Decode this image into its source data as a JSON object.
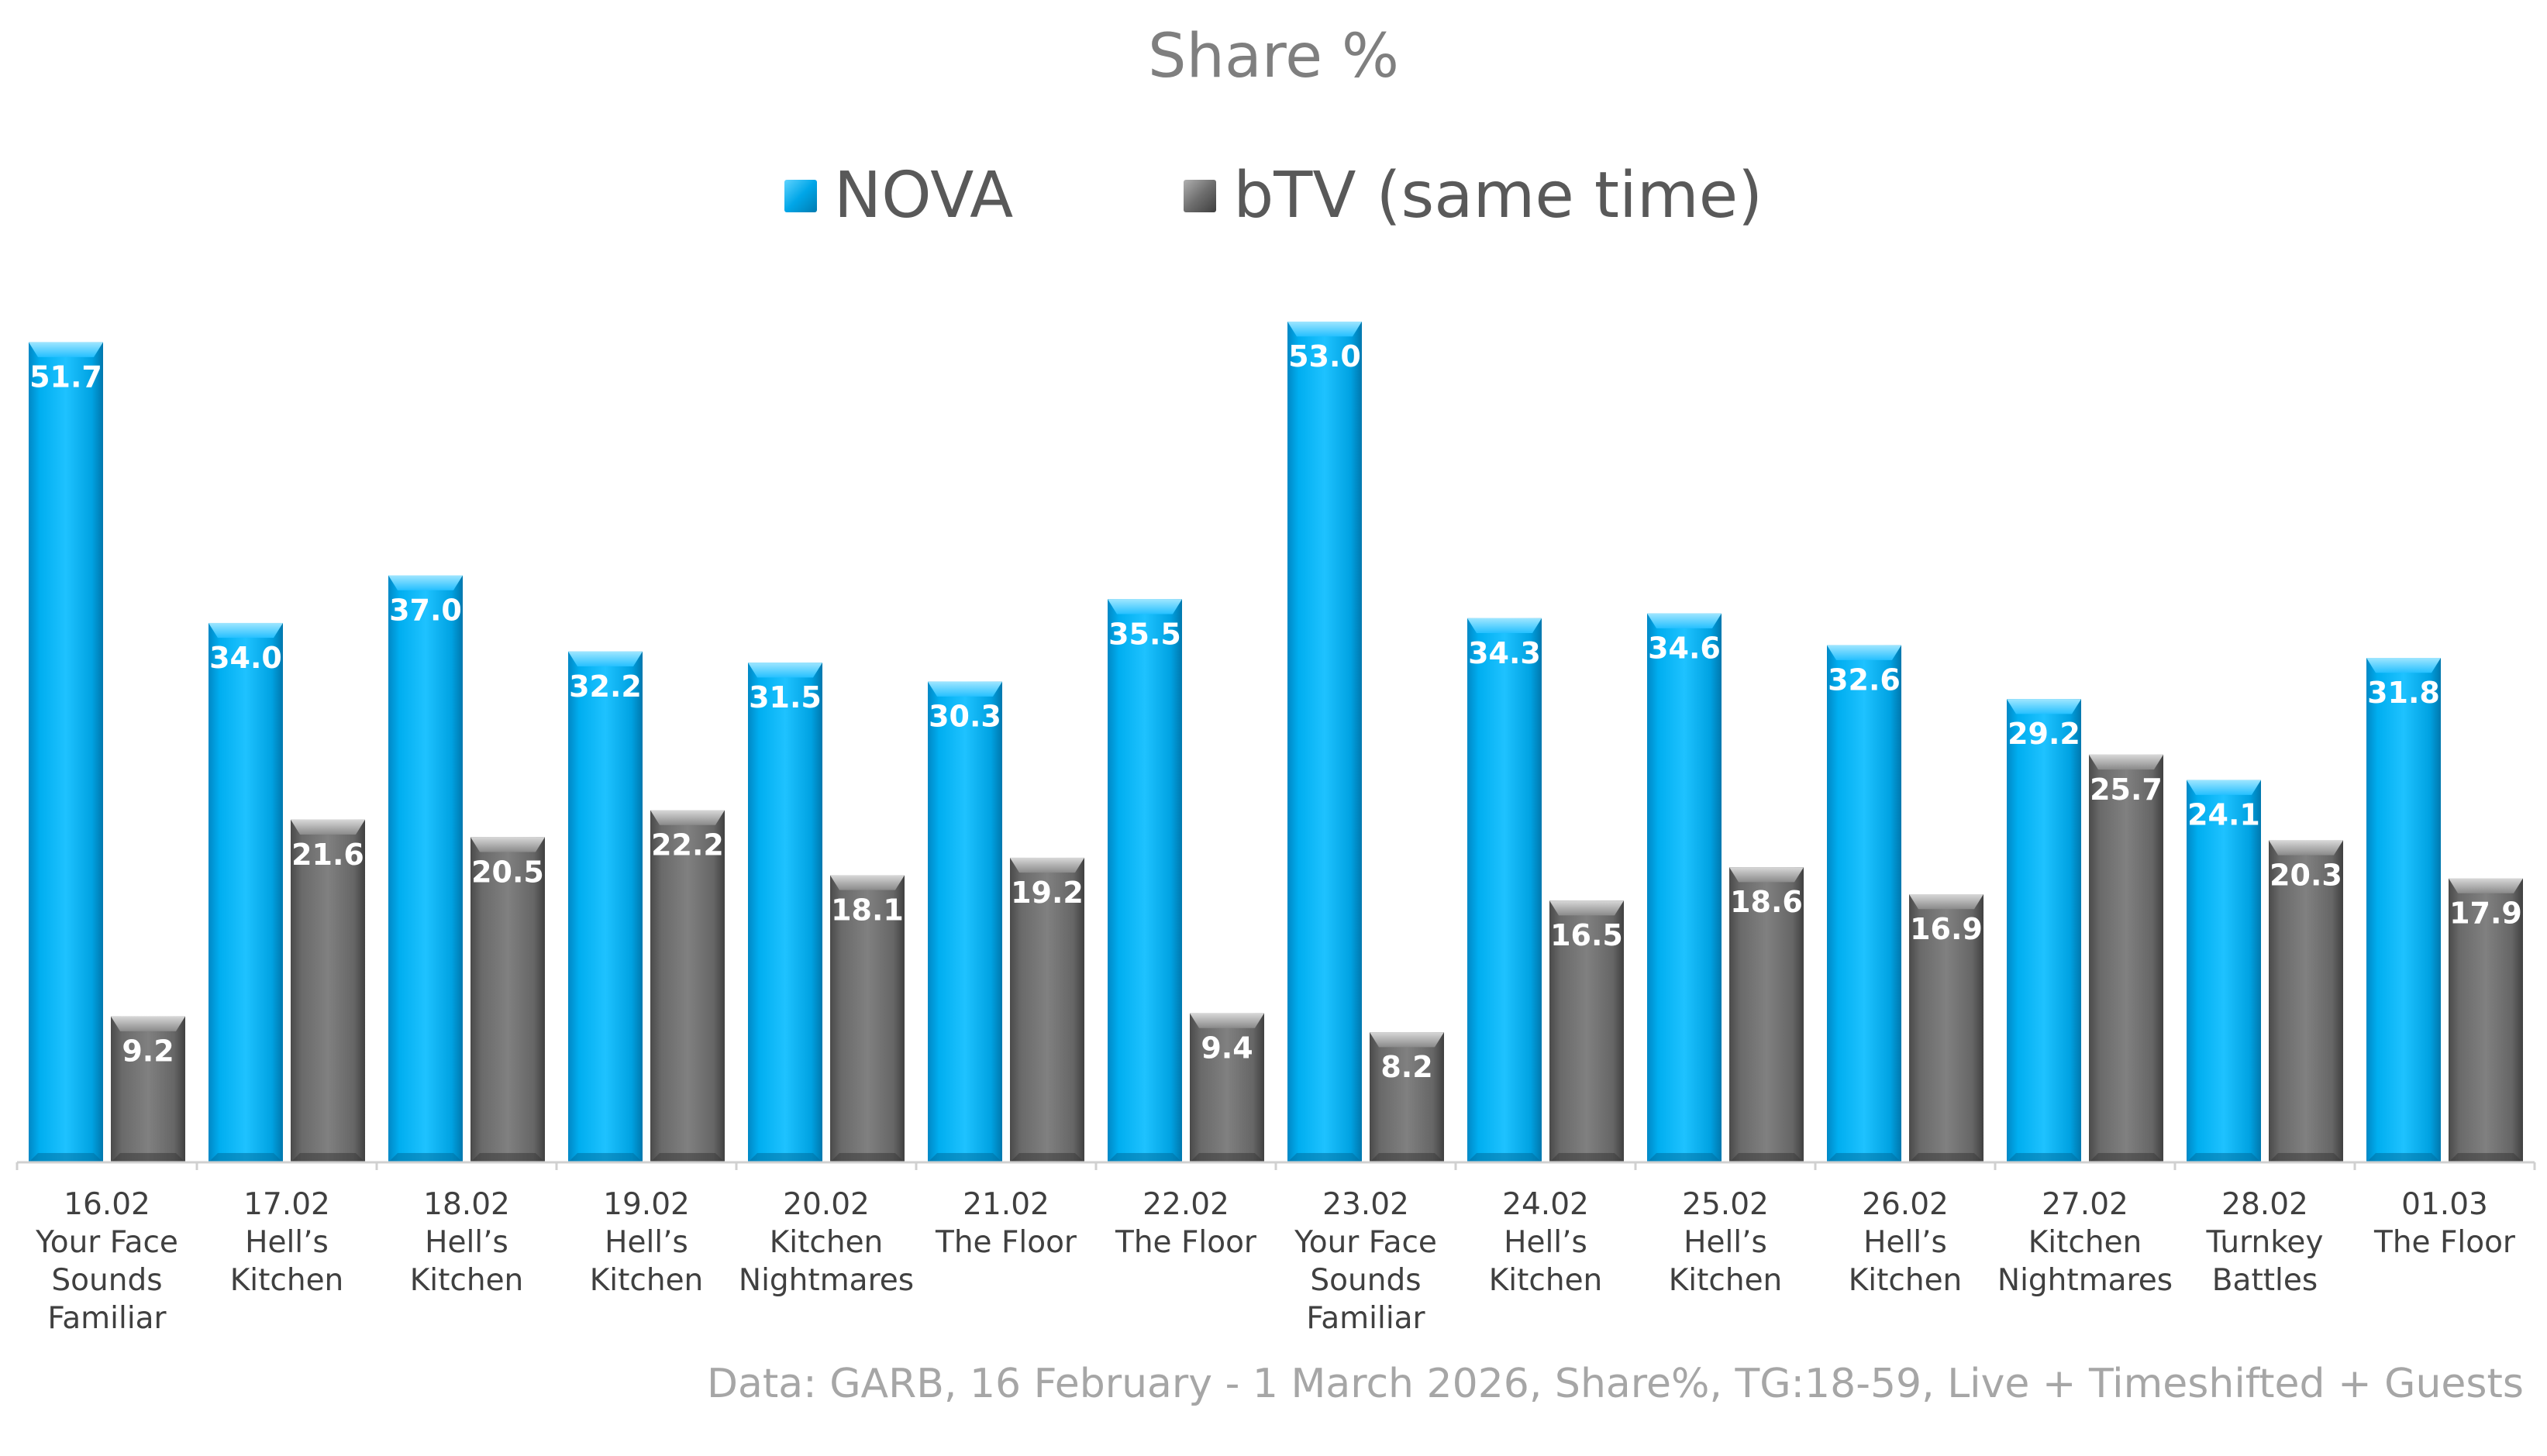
{
  "chart_data": {
    "type": "bar",
    "title": "Share %",
    "categories": [
      [
        "16.02",
        "Your Face",
        "Sounds",
        "Familiar"
      ],
      [
        "17.02",
        "Hell’s",
        "Kitchen"
      ],
      [
        "18.02",
        "Hell’s",
        "Kitchen"
      ],
      [
        "19.02",
        "Hell’s",
        "Kitchen"
      ],
      [
        "20.02",
        "Kitchen",
        "Nightmares"
      ],
      [
        "21.02",
        "The Floor"
      ],
      [
        "22.02",
        "The Floor"
      ],
      [
        "23.02",
        "Your Face",
        "Sounds",
        "Familiar"
      ],
      [
        "24.02",
        "Hell’s",
        "Kitchen"
      ],
      [
        "25.02",
        "Hell’s",
        "Kitchen"
      ],
      [
        "26.02",
        "Hell’s",
        "Kitchen"
      ],
      [
        "27.02",
        "Kitchen",
        "Nightmares"
      ],
      [
        "28.02",
        "Turnkey",
        "Battles"
      ],
      [
        "01.03",
        "The Floor"
      ]
    ],
    "series": [
      {
        "name": "NOVA",
        "color": "#00a6e8",
        "values": [
          51.7,
          34.0,
          37.0,
          32.2,
          31.5,
          30.3,
          35.5,
          53.0,
          34.3,
          34.6,
          32.6,
          29.2,
          24.1,
          31.8
        ],
        "labels": [
          "51.7",
          "34.0",
          "37.0",
          "32.2",
          "31.5",
          "30.3",
          "35.5",
          "53.0",
          "34.3",
          "34.6",
          "32.6",
          "29.2",
          "24.1",
          "31.8"
        ]
      },
      {
        "name": "bTV (same time)",
        "color": "#6e6e6e",
        "values": [
          9.2,
          21.6,
          20.5,
          22.2,
          18.1,
          19.2,
          9.4,
          8.2,
          16.5,
          18.6,
          16.9,
          25.7,
          20.3,
          17.9
        ],
        "labels": [
          "9.2",
          "21.6",
          "20.5",
          "22.2",
          "18.1",
          "19.2",
          "9.4",
          "8.2",
          "16.5",
          "18.6",
          "16.9",
          "25.7",
          "20.3",
          "17.9"
        ]
      }
    ],
    "ylim": [
      0,
      53
    ],
    "grid": false,
    "legend": "top-center"
  },
  "source_note": "Data: GARB, 16 February - 1 March  2026, Share%, TG:18-59, Live + Timeshifted + Guests"
}
